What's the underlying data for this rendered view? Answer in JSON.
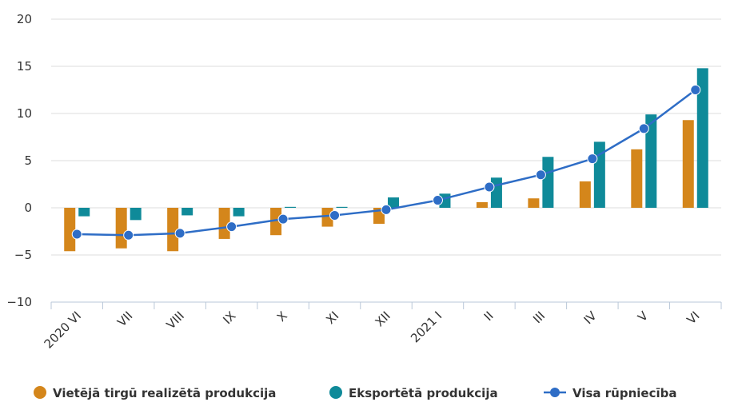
{
  "chart_data": {
    "type": "bar",
    "categories": [
      "2020 VI",
      "VII",
      "VIII",
      "IX",
      "X",
      "XI",
      "XII",
      "2021 I",
      "II",
      "III",
      "IV",
      "V",
      "VI"
    ],
    "series": [
      {
        "name": "Vietējā tirgū realizētā produkcija",
        "type": "bar",
        "color": "#d4861b",
        "values": [
          -4.6,
          -4.3,
          -4.6,
          -3.3,
          -2.9,
          -2.0,
          -1.7,
          0.0,
          0.6,
          1.0,
          2.8,
          6.2,
          9.3
        ]
      },
      {
        "name": "Eksportētā produkcija",
        "type": "bar",
        "color": "#0f8a99",
        "values": [
          -0.9,
          -1.3,
          -0.8,
          -0.9,
          0.1,
          0.1,
          1.1,
          1.5,
          3.2,
          5.4,
          7.0,
          9.9,
          14.8
        ]
      },
      {
        "name": "Visa rūpniecība",
        "type": "line",
        "color": "#2e6dc6",
        "values": [
          -2.8,
          -2.9,
          -2.7,
          -2.0,
          -1.2,
          -0.8,
          -0.2,
          0.8,
          2.2,
          3.5,
          5.2,
          8.4,
          12.5
        ]
      }
    ],
    "ylim": [
      -10,
      20
    ],
    "yticks": [
      20,
      15,
      10,
      5,
      0,
      -5,
      -10
    ],
    "ytick_labels": [
      "20",
      "15",
      "10",
      "5",
      "0",
      "−5",
      "−10"
    ],
    "grid": true,
    "legend_position": "bottom",
    "title": "",
    "xlabel": "",
    "ylabel": ""
  }
}
